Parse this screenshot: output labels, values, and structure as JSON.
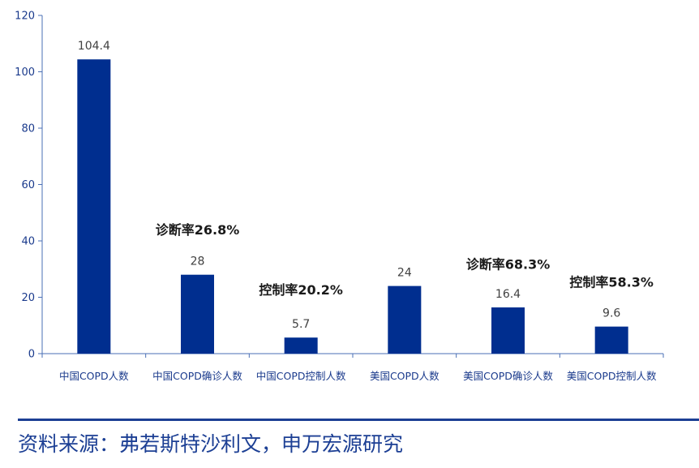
{
  "chart_data": {
    "type": "bar",
    "categories": [
      "中国COPD人数",
      "中国COPD确诊人数",
      "中国COPD控制人数",
      "美国COPD人数",
      "美国COPD确诊人数",
      "美国COPD控制人数"
    ],
    "values": [
      104.4,
      28,
      5.7,
      24,
      16.4,
      9.6
    ],
    "value_labels": [
      "104.4",
      "28",
      "5.7",
      "24",
      "16.4",
      "9.6"
    ],
    "yticks": [
      "0",
      "20",
      "40",
      "60",
      "80",
      "100",
      "120"
    ],
    "ylim": [
      0,
      120
    ],
    "grid": false,
    "legend": "none",
    "bar_color": "#002e8f",
    "axis_color": "#4a6fb5",
    "annotations": [
      {
        "text": "诊断率26.8%",
        "category_index": 1,
        "y": 44
      },
      {
        "text": "控制率20.2%",
        "category_index": 2,
        "y": 22.8
      },
      {
        "text": "诊断率68.3%",
        "category_index": 4,
        "y": 31.8
      },
      {
        "text": "控制率58.3%",
        "category_index": 5,
        "y": 25.5
      }
    ]
  },
  "source": "资料来源：弗若斯特沙利文，申万宏源研究"
}
